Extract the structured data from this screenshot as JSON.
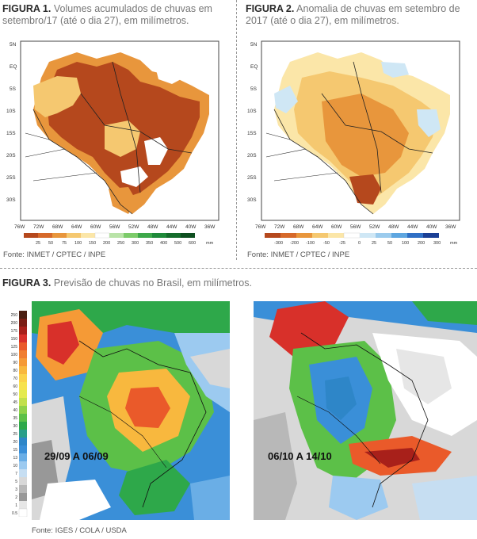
{
  "fig1": {
    "label": "FIGURA 1.",
    "text": "Volumes acumulados de chuvas em setembro/17 (até o dia 27), em milímetros.",
    "lat_ticks": [
      "5N",
      "EQ",
      "5S",
      "10S",
      "15S",
      "20S",
      "25S",
      "30S"
    ],
    "lon_ticks": [
      "76W",
      "72W",
      "68W",
      "64W",
      "60W",
      "56W",
      "52W",
      "48W",
      "44W",
      "40W",
      "36W"
    ],
    "scale_values": [
      "25",
      "50",
      "75",
      "100",
      "150",
      "200",
      "250",
      "300",
      "350",
      "400",
      "500",
      "600"
    ],
    "scale_unit": "mm",
    "source": "Fonte: INMET / CPTEC / INPE"
  },
  "fig2": {
    "label": "FIGURA 2.",
    "text": "Anomalia de chuvas em setembro de 2017 (até o dia 27), em milímetros.",
    "lat_ticks": [
      "5N",
      "EQ",
      "5S",
      "10S",
      "15S",
      "20S",
      "25S",
      "30S"
    ],
    "lon_ticks": [
      "76W",
      "72W",
      "68W",
      "64W",
      "60W",
      "56W",
      "52W",
      "48W",
      "44W",
      "40W",
      "36W"
    ],
    "scale_values": [
      "-300",
      "-200",
      "-100",
      "-50",
      "-25",
      "0",
      "25",
      "50",
      "100",
      "200",
      "300"
    ],
    "scale_unit": "mm",
    "source": "Fonte: INMET / CPTEC / INPE"
  },
  "fig3": {
    "label": "FIGURA 3.",
    "text": "Previsão de chuvas no Brasil, em milímetros.",
    "scale_values": [
      "250",
      "200",
      "175",
      "150",
      "125",
      "100",
      "90",
      "80",
      "70",
      "60",
      "50",
      "45",
      "40",
      "35",
      "30",
      "25",
      "20",
      "15",
      "13",
      "10",
      "7",
      "5",
      "3",
      "2",
      "1",
      "0.5"
    ],
    "map1_label": "29/09 A 06/09",
    "map2_label": "06/10 A 14/10",
    "source": "Fonte: IGES / COLA / USDA"
  },
  "colors": {
    "dark_brown": "#b5481d",
    "orange": "#e8963c",
    "light_orange": "#f5c870",
    "pale": "#fbe6a8",
    "light_blue": "#cfe7f5",
    "forecast_blue": "#3a8fd8",
    "forecast_green": "#2ea84a",
    "forecast_red": "#d8302a"
  }
}
